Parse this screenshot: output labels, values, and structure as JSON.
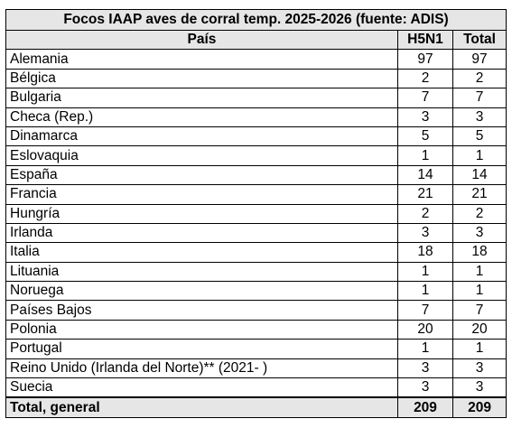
{
  "table": {
    "title": "Focos IAAP aves de corral temp. 2025-2026 (fuente: ADIS)",
    "headers": {
      "country": "País",
      "h5n1": "H5N1",
      "total": "Total"
    },
    "rows": [
      {
        "country": "Alemania",
        "h5n1": "97",
        "total": "97"
      },
      {
        "country": "Bélgica",
        "h5n1": "2",
        "total": "2"
      },
      {
        "country": "Bulgaria",
        "h5n1": "7",
        "total": "7"
      },
      {
        "country": "Checa (Rep.)",
        "h5n1": "3",
        "total": "3"
      },
      {
        "country": "Dinamarca",
        "h5n1": "5",
        "total": "5"
      },
      {
        "country": "Eslovaquia",
        "h5n1": "1",
        "total": "1"
      },
      {
        "country": "España",
        "h5n1": "14",
        "total": "14"
      },
      {
        "country": "Francia",
        "h5n1": "21",
        "total": "21"
      },
      {
        "country": "Hungría",
        "h5n1": "2",
        "total": "2"
      },
      {
        "country": "Irlanda",
        "h5n1": "3",
        "total": "3"
      },
      {
        "country": "Italia",
        "h5n1": "18",
        "total": "18"
      },
      {
        "country": "Lituania",
        "h5n1": "1",
        "total": "1"
      },
      {
        "country": "Noruega",
        "h5n1": "1",
        "total": "1"
      },
      {
        "country": "Países Bajos",
        "h5n1": "7",
        "total": "7"
      },
      {
        "country": "Polonia",
        "h5n1": "20",
        "total": "20"
      },
      {
        "country": "Portugal",
        "h5n1": "1",
        "total": "1"
      },
      {
        "country": "Reino Unido (Irlanda del Norte)** (2021- )",
        "h5n1": "3",
        "total": "3"
      },
      {
        "country": "Suecia",
        "h5n1": "3",
        "total": "3"
      }
    ],
    "footer": {
      "label": "Total, general",
      "h5n1": "209",
      "total": "209"
    }
  }
}
